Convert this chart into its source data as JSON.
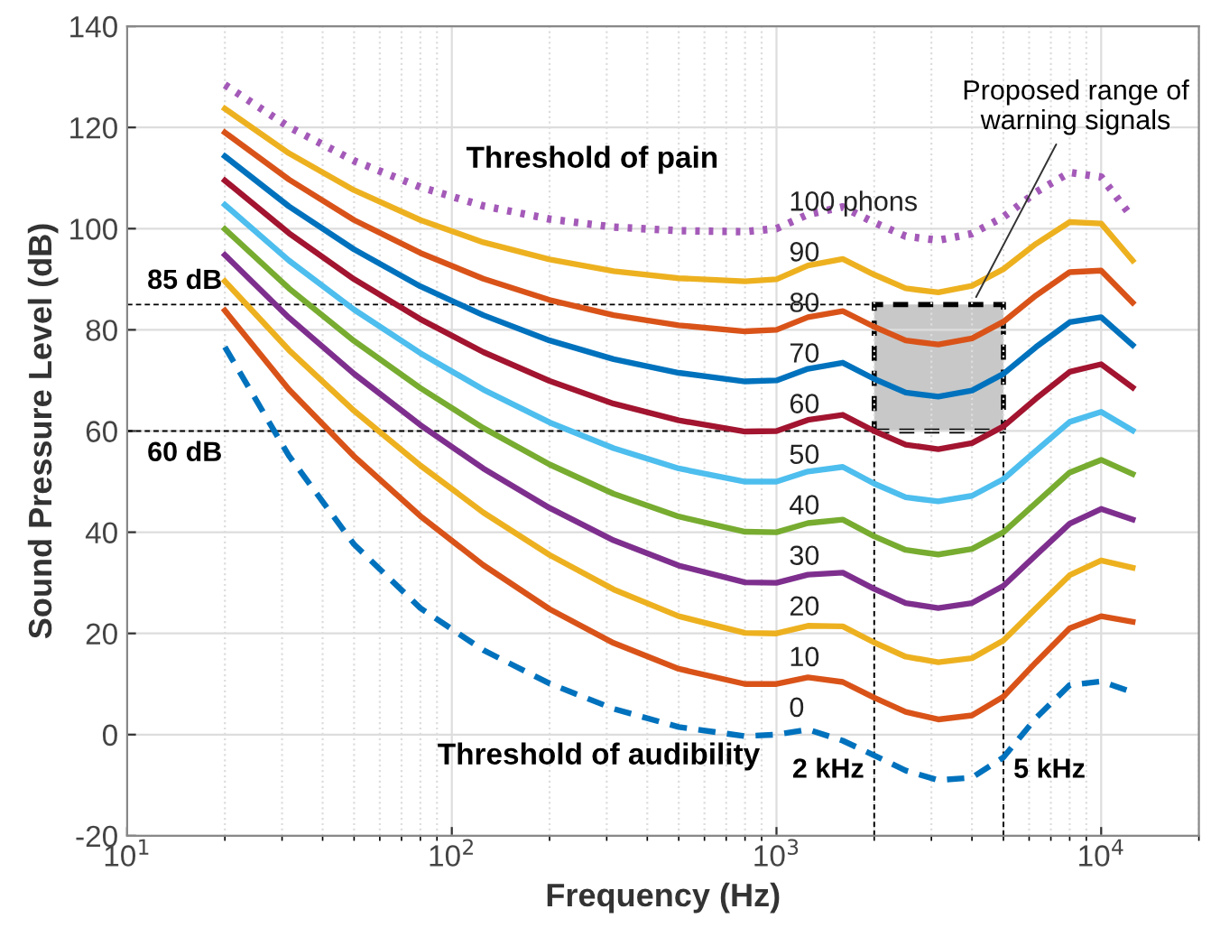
{
  "chart_data": {
    "type": "line",
    "xlabel": "Frequency (Hz)",
    "ylabel": "Sound Pressure Level (dB)",
    "x": [
      20,
      31.5,
      50,
      80,
      125,
      200,
      315,
      500,
      800,
      1000,
      1250,
      1600,
      2000,
      2500,
      3150,
      4000,
      5000,
      6300,
      8000,
      10000,
      12500
    ],
    "log": "x",
    "xlim": [
      10,
      20000
    ],
    "ylim": [
      -20,
      140
    ],
    "xticks": [
      {
        "value": 10,
        "label": "10$^{1}$"
      },
      {
        "value": 100,
        "label": "10$^{2}$"
      },
      {
        "value": 1000,
        "label": "10$^{3}$"
      },
      {
        "value": 10000,
        "label": "10$^{4}$"
      }
    ],
    "yticks": [
      -20,
      0,
      20,
      40,
      60,
      80,
      100,
      120,
      140
    ],
    "grid": true,
    "marker": "none",
    "bands": [
      {
        "axis": "y",
        "from": 60,
        "to": 85,
        "color": "#c8c8c8"
      }
    ],
    "series": [
      {
        "name": "100 phons",
        "color": "#a45ab8",
        "line_style": "dotted",
        "values": [
          128.4,
          120.1,
          113.4,
          108.2,
          104.5,
          101.9,
          100.3,
          99.6,
          99.4,
          100,
          102.8,
          104.3,
          101.2,
          98.5,
          97.7,
          99.0,
          102.3,
          107.2,
          111.1,
          110.2,
          102.1
        ]
      },
      {
        "name": "90",
        "color": "#edb120",
        "line_style": "solid",
        "values": [
          123.7,
          114.9,
          107.6,
          101.7,
          97.3,
          93.9,
          91.6,
          90.2,
          89.6,
          90,
          92.7,
          94.0,
          90.9,
          88.2,
          87.4,
          88.7,
          92.0,
          97.0,
          101.3,
          101.0,
          93.7
        ]
      },
      {
        "name": "80",
        "color": "#d95319",
        "line_style": "solid",
        "values": [
          119.0,
          109.7,
          101.7,
          95.2,
          90.1,
          85.9,
          82.9,
          80.9,
          79.7,
          80,
          82.5,
          83.7,
          80.6,
          77.9,
          77.1,
          78.3,
          81.6,
          86.8,
          91.4,
          91.7,
          85.4
        ]
      },
      {
        "name": "70",
        "color": "#0072bd",
        "line_style": "solid",
        "values": [
          114.3,
          104.4,
          95.9,
          88.6,
          82.9,
          77.9,
          74.2,
          71.5,
          69.8,
          70,
          72.3,
          73.5,
          70.3,
          67.6,
          66.8,
          68.0,
          71.3,
          76.6,
          81.5,
          82.5,
          77.0
        ]
      },
      {
        "name": "60",
        "color": "#a2142f",
        "line_style": "solid",
        "values": [
          109.5,
          99.1,
          90.0,
          82.1,
          75.6,
          69.9,
          65.4,
          62.1,
          59.9,
          60,
          62.2,
          63.2,
          60.0,
          57.3,
          56.4,
          57.6,
          60.9,
          66.4,
          71.7,
          73.2,
          68.6
        ]
      },
      {
        "name": "50",
        "color": "#4dbeee",
        "line_style": "solid",
        "values": [
          104.7,
          93.7,
          84.0,
          75.4,
          68.2,
          61.7,
          56.6,
          52.6,
          50.0,
          50,
          52.0,
          52.9,
          49.6,
          46.9,
          46.1,
          47.2,
          50.5,
          56.1,
          61.8,
          63.8,
          60.1
        ]
      },
      {
        "name": "40",
        "color": "#77ac30",
        "line_style": "solid",
        "values": [
          99.9,
          88.2,
          77.8,
          68.5,
          60.6,
          53.4,
          47.6,
          43.1,
          40.1,
          40,
          41.8,
          42.5,
          39.2,
          36.5,
          35.6,
          36.7,
          40.0,
          45.8,
          51.8,
          54.3,
          51.5
        ]
      },
      {
        "name": "30",
        "color": "#7e2f8e",
        "line_style": "solid",
        "values": [
          94.8,
          82.4,
          71.3,
          61.2,
          52.6,
          44.8,
          38.4,
          33.4,
          30.1,
          30,
          31.6,
          32.0,
          28.8,
          26.0,
          25.0,
          26.0,
          29.4,
          35.5,
          41.7,
          44.6,
          42.5
        ]
      },
      {
        "name": "20",
        "color": "#edb120",
        "line_style": "solid",
        "values": [
          89.6,
          76.0,
          64.0,
          53.2,
          43.9,
          35.5,
          28.7,
          23.4,
          20.1,
          20,
          21.5,
          21.4,
          18.2,
          15.4,
          14.3,
          15.1,
          18.6,
          25.0,
          31.5,
          34.4,
          33.0
        ]
      },
      {
        "name": "10",
        "color": "#d95319",
        "line_style": "solid",
        "values": [
          83.8,
          68.2,
          55.0,
          43.2,
          33.5,
          24.8,
          18.1,
          13.0,
          10.0,
          10,
          11.3,
          10.4,
          7.3,
          4.5,
          3.0,
          3.8,
          7.5,
          14.3,
          21.0,
          23.4,
          22.3
        ]
      },
      {
        "name": "0",
        "color": "#0072bd",
        "line_style": "dashed",
        "values": [
          76.6,
          55.1,
          37.6,
          25.0,
          16.7,
          10.1,
          5.1,
          1.5,
          -0.3,
          0,
          1.0,
          -1.2,
          -4.1,
          -7.1,
          -9.0,
          -8.5,
          -4.5,
          3.3,
          9.8,
          10.5,
          8.4
        ]
      }
    ],
    "ref_lines": [
      {
        "axis": "y",
        "value": 85,
        "label": "85 dB",
        "color": "#000000",
        "line_style": "dashed"
      },
      {
        "axis": "y",
        "value": 60,
        "label": "60 dB",
        "color": "#000000",
        "line_style": "dashed"
      },
      {
        "axis": "x",
        "value": 2000,
        "label": "2 kHz",
        "color": "#000000",
        "line_style": "dashed"
      },
      {
        "axis": "x",
        "value": 5000,
        "label": "5 kHz",
        "color": "#000000",
        "line_style": "dashed"
      }
    ],
    "annotations": [
      "Threshold of pain",
      "Threshold of audibility",
      "Proposed range of\nwarning signals"
    ]
  }
}
